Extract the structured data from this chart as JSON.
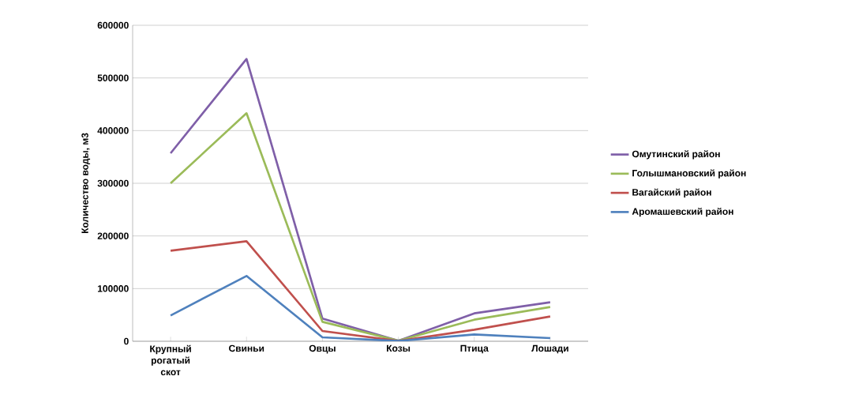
{
  "chart_data": {
    "type": "line",
    "ylabel": "Количество воды, м3",
    "categories": [
      "Крупный рогатый скот",
      "Свиньи",
      "Овцы",
      "Козы",
      "Птица",
      "Лошади"
    ],
    "series": [
      {
        "name": "Омутинский район",
        "color": "#7f5fa8",
        "values": [
          357000,
          536000,
          43000,
          1000,
          53000,
          74000
        ]
      },
      {
        "name": "Голышмановский район",
        "color": "#9bbb59",
        "values": [
          300000,
          433000,
          37000,
          1000,
          41000,
          65000
        ]
      },
      {
        "name": "Вагайский район",
        "color": "#c0504d",
        "values": [
          172000,
          190000,
          19500,
          500,
          22000,
          47000
        ]
      },
      {
        "name": "Аромашевский район",
        "color": "#4f81bd",
        "values": [
          49000,
          124000,
          7500,
          500,
          13000,
          6000
        ]
      }
    ],
    "ylim": [
      0,
      600000
    ],
    "yticks": [
      0,
      100000,
      200000,
      300000,
      400000,
      500000,
      600000
    ],
    "grid": "y",
    "legend": "right",
    "marker": "none",
    "line_style": "solid"
  }
}
